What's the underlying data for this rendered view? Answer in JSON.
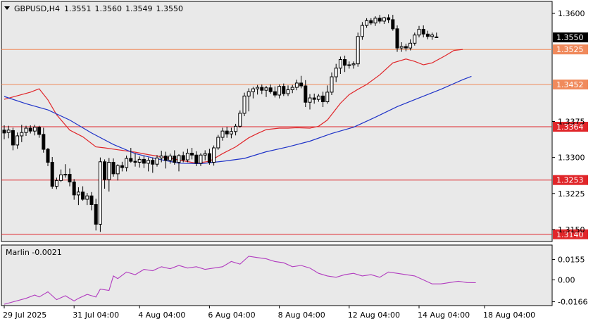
{
  "header": {
    "symbol": "GBPUSD,H4",
    "open": "1.3551",
    "high": "1.3560",
    "low": "1.3549",
    "close": "1.3550"
  },
  "colors": {
    "background": "#e9e9e9",
    "frame": "#000000",
    "bull_candle": "#ffffff",
    "bear_candle": "#000000",
    "ma_fast": "#e0262a",
    "ma_slow": "#1f33c8",
    "level_red": "#e0262a",
    "level_orange": "#f08a5c",
    "marlin": "#b13bbf",
    "price_badge": "#000000"
  },
  "chart_data": [
    {
      "type": "candlestick",
      "pane": "main",
      "title": "GBPUSD,H4",
      "ylim": [
        1.3125,
        1.3625
      ],
      "y_ticks": [
        "1.3600",
        "1.3375",
        "1.3300",
        "1.3225",
        "1.3150"
      ],
      "x_tick_labels": [
        "29 Jul 2025",
        "31 Jul 04:00",
        "4 Aug 04:00",
        "6 Aug 04:00",
        "8 Aug 04:00",
        "12 Aug 04:00",
        "14 Aug 04:00",
        "18 Aug 04:00"
      ],
      "x_tick_bar_index": [
        0,
        16,
        31,
        47,
        63,
        79,
        95,
        110
      ],
      "candles": [
        [
          1.3357,
          1.3367,
          1.3338,
          1.3351
        ],
        [
          1.3352,
          1.3366,
          1.334,
          1.3357
        ],
        [
          1.3356,
          1.3362,
          1.3315,
          1.3326
        ],
        [
          1.3326,
          1.3352,
          1.3318,
          1.3345
        ],
        [
          1.3345,
          1.3368,
          1.3332,
          1.3352
        ],
        [
          1.3352,
          1.3366,
          1.3345,
          1.3361
        ],
        [
          1.3361,
          1.3367,
          1.335,
          1.3355
        ],
        [
          1.3355,
          1.3368,
          1.3346,
          1.3363
        ],
        [
          1.3363,
          1.3366,
          1.3341,
          1.3348
        ],
        [
          1.3348,
          1.3362,
          1.331,
          1.3317
        ],
        [
          1.3317,
          1.332,
          1.3282,
          1.329
        ],
        [
          1.329,
          1.3301,
          1.3235,
          1.324
        ],
        [
          1.324,
          1.3258,
          1.3234,
          1.3252
        ],
        [
          1.3252,
          1.3275,
          1.3249,
          1.3264
        ],
        [
          1.3264,
          1.3286,
          1.3258,
          1.3265
        ],
        [
          1.3265,
          1.3277,
          1.324,
          1.3249
        ],
        [
          1.3249,
          1.3255,
          1.3212,
          1.3222
        ],
        [
          1.3222,
          1.3238,
          1.3201,
          1.3228
        ],
        [
          1.3228,
          1.324,
          1.321,
          1.3213
        ],
        [
          1.3213,
          1.3226,
          1.3201,
          1.322
        ],
        [
          1.322,
          1.3228,
          1.319,
          1.3202
        ],
        [
          1.3202,
          1.3214,
          1.3148,
          1.3161
        ],
        [
          1.3161,
          1.33,
          1.3145,
          1.3291
        ],
        [
          1.3291,
          1.3296,
          1.3235,
          1.3254
        ],
        [
          1.3254,
          1.3299,
          1.3229,
          1.329
        ],
        [
          1.329,
          1.3298,
          1.326,
          1.3266
        ],
        [
          1.3266,
          1.3286,
          1.3252,
          1.3283
        ],
        [
          1.3283,
          1.3291,
          1.3271,
          1.3279
        ],
        [
          1.3279,
          1.3304,
          1.3271,
          1.3298
        ],
        [
          1.3298,
          1.332,
          1.3289,
          1.3292
        ],
        [
          1.3292,
          1.3309,
          1.3281,
          1.329
        ],
        [
          1.329,
          1.3302,
          1.3279,
          1.3296
        ],
        [
          1.3296,
          1.3304,
          1.3278,
          1.3288
        ],
        [
          1.3288,
          1.33,
          1.3271,
          1.3294
        ],
        [
          1.3294,
          1.33,
          1.3268,
          1.3286
        ],
        [
          1.3286,
          1.3305,
          1.3281,
          1.3299
        ],
        [
          1.3299,
          1.3314,
          1.329,
          1.3303
        ],
        [
          1.3303,
          1.3312,
          1.3277,
          1.3294
        ],
        [
          1.3294,
          1.3308,
          1.3287,
          1.3303
        ],
        [
          1.3303,
          1.3315,
          1.3285,
          1.329
        ],
        [
          1.329,
          1.3307,
          1.3271,
          1.3304
        ],
        [
          1.3304,
          1.3312,
          1.329,
          1.3295
        ],
        [
          1.3295,
          1.3318,
          1.329,
          1.3309
        ],
        [
          1.3309,
          1.332,
          1.3296,
          1.3305
        ],
        [
          1.3305,
          1.3313,
          1.3282,
          1.3288
        ],
        [
          1.3288,
          1.3309,
          1.3282,
          1.3305
        ],
        [
          1.3305,
          1.3315,
          1.3294,
          1.3308
        ],
        [
          1.3308,
          1.3318,
          1.3285,
          1.329
        ],
        [
          1.329,
          1.3325,
          1.3283,
          1.332
        ],
        [
          1.332,
          1.3347,
          1.3316,
          1.3342
        ],
        [
          1.3342,
          1.3362,
          1.3335,
          1.3355
        ],
        [
          1.3355,
          1.3364,
          1.3341,
          1.3349
        ],
        [
          1.3349,
          1.3362,
          1.334,
          1.3354
        ],
        [
          1.3354,
          1.337,
          1.3346,
          1.3365
        ],
        [
          1.3365,
          1.3398,
          1.3362,
          1.3392
        ],
        [
          1.3392,
          1.3435,
          1.3386,
          1.3428
        ],
        [
          1.3428,
          1.3444,
          1.3396,
          1.3437
        ],
        [
          1.3437,
          1.3447,
          1.3423,
          1.3443
        ],
        [
          1.3443,
          1.3451,
          1.3431,
          1.3446
        ],
        [
          1.3446,
          1.3452,
          1.3432,
          1.344
        ],
        [
          1.344,
          1.3449,
          1.3426,
          1.3445
        ],
        [
          1.3445,
          1.3452,
          1.3433,
          1.3437
        ],
        [
          1.3437,
          1.3448,
          1.3425,
          1.343
        ],
        [
          1.343,
          1.3452,
          1.3423,
          1.3448
        ],
        [
          1.3448,
          1.3454,
          1.3428,
          1.3433
        ],
        [
          1.3433,
          1.345,
          1.3428,
          1.3441
        ],
        [
          1.3441,
          1.3451,
          1.3434,
          1.3446
        ],
        [
          1.3446,
          1.3462,
          1.344,
          1.3455
        ],
        [
          1.3455,
          1.347,
          1.3444,
          1.3449
        ],
        [
          1.3449,
          1.3461,
          1.3405,
          1.3415
        ],
        [
          1.3415,
          1.3432,
          1.34,
          1.3424
        ],
        [
          1.3424,
          1.3433,
          1.3412,
          1.3421
        ],
        [
          1.3421,
          1.3432,
          1.3416,
          1.3428
        ],
        [
          1.3428,
          1.3437,
          1.3405,
          1.3416
        ],
        [
          1.3416,
          1.345,
          1.3412,
          1.3436
        ],
        [
          1.3436,
          1.3477,
          1.343,
          1.3468
        ],
        [
          1.3468,
          1.3495,
          1.3457,
          1.3486
        ],
        [
          1.3486,
          1.351,
          1.3474,
          1.3504
        ],
        [
          1.3504,
          1.3512,
          1.3478,
          1.3492
        ],
        [
          1.3492,
          1.35,
          1.3485,
          1.3493
        ],
        [
          1.3493,
          1.35,
          1.3485,
          1.3495
        ],
        [
          1.3495,
          1.356,
          1.3489,
          1.3552
        ],
        [
          1.3552,
          1.3582,
          1.3545,
          1.3575
        ],
        [
          1.3575,
          1.359,
          1.357,
          1.3585
        ],
        [
          1.3585,
          1.359,
          1.3576,
          1.358
        ],
        [
          1.358,
          1.3594,
          1.3574,
          1.359
        ],
        [
          1.359,
          1.3597,
          1.3579,
          1.3584
        ],
        [
          1.3584,
          1.3593,
          1.3578,
          1.3591
        ],
        [
          1.3591,
          1.3598,
          1.358,
          1.3587
        ],
        [
          1.3587,
          1.3597,
          1.3564,
          1.3568
        ],
        [
          1.3568,
          1.3575,
          1.352,
          1.3528
        ],
        [
          1.3528,
          1.354,
          1.352,
          1.3531
        ],
        [
          1.3531,
          1.3537,
          1.3521,
          1.3528
        ],
        [
          1.3528,
          1.3546,
          1.3523,
          1.3538
        ],
        [
          1.3538,
          1.356,
          1.3533,
          1.3555
        ],
        [
          1.3555,
          1.3574,
          1.355,
          1.3567
        ],
        [
          1.3567,
          1.3575,
          1.355,
          1.3557
        ],
        [
          1.3557,
          1.3564,
          1.3546,
          1.3552
        ],
        [
          1.3552,
          1.356,
          1.3545,
          1.3555
        ],
        [
          1.3551,
          1.356,
          1.3549,
          1.355
        ]
      ],
      "moving_averages": [
        {
          "name": "fast",
          "color": "#e0262a",
          "points": [
            [
              0,
              1.3421
            ],
            [
              6,
              1.3436
            ],
            [
              8,
              1.3443
            ],
            [
              10,
              1.342
            ],
            [
              12,
              1.3389
            ],
            [
              15,
              1.3357
            ],
            [
              18,
              1.3343
            ],
            [
              21,
              1.3322
            ],
            [
              23,
              1.332
            ],
            [
              26,
              1.3316
            ],
            [
              30,
              1.3311
            ],
            [
              33,
              1.3306
            ],
            [
              37,
              1.33
            ],
            [
              41,
              1.3293
            ],
            [
              44,
              1.3288
            ],
            [
              47,
              1.3292
            ],
            [
              50,
              1.3308
            ],
            [
              53,
              1.3322
            ],
            [
              56,
              1.3341
            ],
            [
              58,
              1.335
            ],
            [
              60,
              1.3358
            ],
            [
              63,
              1.3361
            ],
            [
              65,
              1.3361
            ],
            [
              67,
              1.3362
            ],
            [
              70,
              1.3361
            ],
            [
              72,
              1.3365
            ],
            [
              74,
              1.3378
            ],
            [
              77,
              1.3413
            ],
            [
              79,
              1.3431
            ],
            [
              81,
              1.3442
            ],
            [
              83,
              1.3452
            ],
            [
              86,
              1.3472
            ],
            [
              89,
              1.3497
            ],
            [
              92,
              1.3505
            ],
            [
              94,
              1.35
            ],
            [
              96,
              1.3493
            ],
            [
              98,
              1.3497
            ],
            [
              101,
              1.3512
            ],
            [
              103,
              1.3523
            ],
            [
              105,
              1.3525
            ]
          ]
        },
        {
          "name": "slow",
          "color": "#1f33c8",
          "points": [
            [
              0,
              1.3427
            ],
            [
              5,
              1.3412
            ],
            [
              10,
              1.3399
            ],
            [
              15,
              1.3378
            ],
            [
              20,
              1.3351
            ],
            [
              25,
              1.3327
            ],
            [
              30,
              1.3308
            ],
            [
              35,
              1.3297
            ],
            [
              40,
              1.3288
            ],
            [
              45,
              1.3287
            ],
            [
              50,
              1.3292
            ],
            [
              55,
              1.3298
            ],
            [
              60,
              1.3312
            ],
            [
              65,
              1.3322
            ],
            [
              70,
              1.3334
            ],
            [
              75,
              1.335
            ],
            [
              80,
              1.3363
            ],
            [
              85,
              1.3384
            ],
            [
              90,
              1.3406
            ],
            [
              95,
              1.3424
            ],
            [
              100,
              1.3442
            ],
            [
              105,
              1.3462
            ],
            [
              107,
              1.3469
            ]
          ]
        }
      ],
      "levels": [
        {
          "value": 1.3525,
          "label": "1.3525",
          "style": "orange"
        },
        {
          "value": 1.3452,
          "label": "1.3452",
          "style": "orange"
        },
        {
          "value": 1.3364,
          "label": "1.3364",
          "style": "red"
        },
        {
          "value": 1.3253,
          "label": "1.3253",
          "style": "red"
        },
        {
          "value": 1.314,
          "label": "1.3140",
          "style": "red"
        }
      ],
      "last_price": {
        "value": 1.355,
        "label": "1.3550"
      }
    },
    {
      "type": "line",
      "pane": "indicator",
      "title": "Marlin -0.0021",
      "ylim": [
        -0.0195,
        0.0265
      ],
      "y_ticks": [
        "0.0155",
        "0.00",
        "-0.0166"
      ],
      "y_tick_values": [
        0.0155,
        0.0,
        -0.0166
      ],
      "series": [
        {
          "name": "Marlin",
          "color": "#b13bbf",
          "points": [
            [
              0,
              -0.0185
            ],
            [
              5,
              -0.014
            ],
            [
              7,
              -0.0115
            ],
            [
              8,
              -0.013
            ],
            [
              10,
              -0.009
            ],
            [
              12,
              -0.015
            ],
            [
              14,
              -0.012
            ],
            [
              16,
              -0.016
            ],
            [
              17,
              -0.014
            ],
            [
              19,
              -0.011
            ],
            [
              21,
              -0.013
            ],
            [
              22,
              -0.007
            ],
            [
              24,
              -0.008
            ],
            [
              25,
              0.003
            ],
            [
              26,
              0.001
            ],
            [
              28,
              0.006
            ],
            [
              30,
              0.004
            ],
            [
              32,
              0.008
            ],
            [
              34,
              0.007
            ],
            [
              36,
              0.01
            ],
            [
              38,
              0.0085
            ],
            [
              40,
              0.011
            ],
            [
              42,
              0.009
            ],
            [
              44,
              0.01
            ],
            [
              46,
              0.008
            ],
            [
              48,
              0.009
            ],
            [
              50,
              0.01
            ],
            [
              52,
              0.014
            ],
            [
              54,
              0.012
            ],
            [
              56,
              0.018
            ],
            [
              58,
              0.017
            ],
            [
              60,
              0.016
            ],
            [
              62,
              0.014
            ],
            [
              64,
              0.013
            ],
            [
              66,
              0.01
            ],
            [
              68,
              0.011
            ],
            [
              70,
              0.009
            ],
            [
              72,
              0.005
            ],
            [
              74,
              0.003
            ],
            [
              76,
              0.002
            ],
            [
              78,
              0.004
            ],
            [
              80,
              0.005
            ],
            [
              82,
              0.003
            ],
            [
              84,
              0.004
            ],
            [
              86,
              0.002
            ],
            [
              88,
              0.006
            ],
            [
              90,
              0.005
            ],
            [
              92,
              0.004
            ],
            [
              94,
              0.003
            ],
            [
              96,
              0.0
            ],
            [
              98,
              -0.003
            ],
            [
              100,
              -0.003
            ],
            [
              102,
              -0.002
            ],
            [
              104,
              -0.001
            ],
            [
              106,
              -0.002
            ],
            [
              108,
              -0.0021
            ]
          ]
        }
      ]
    }
  ]
}
